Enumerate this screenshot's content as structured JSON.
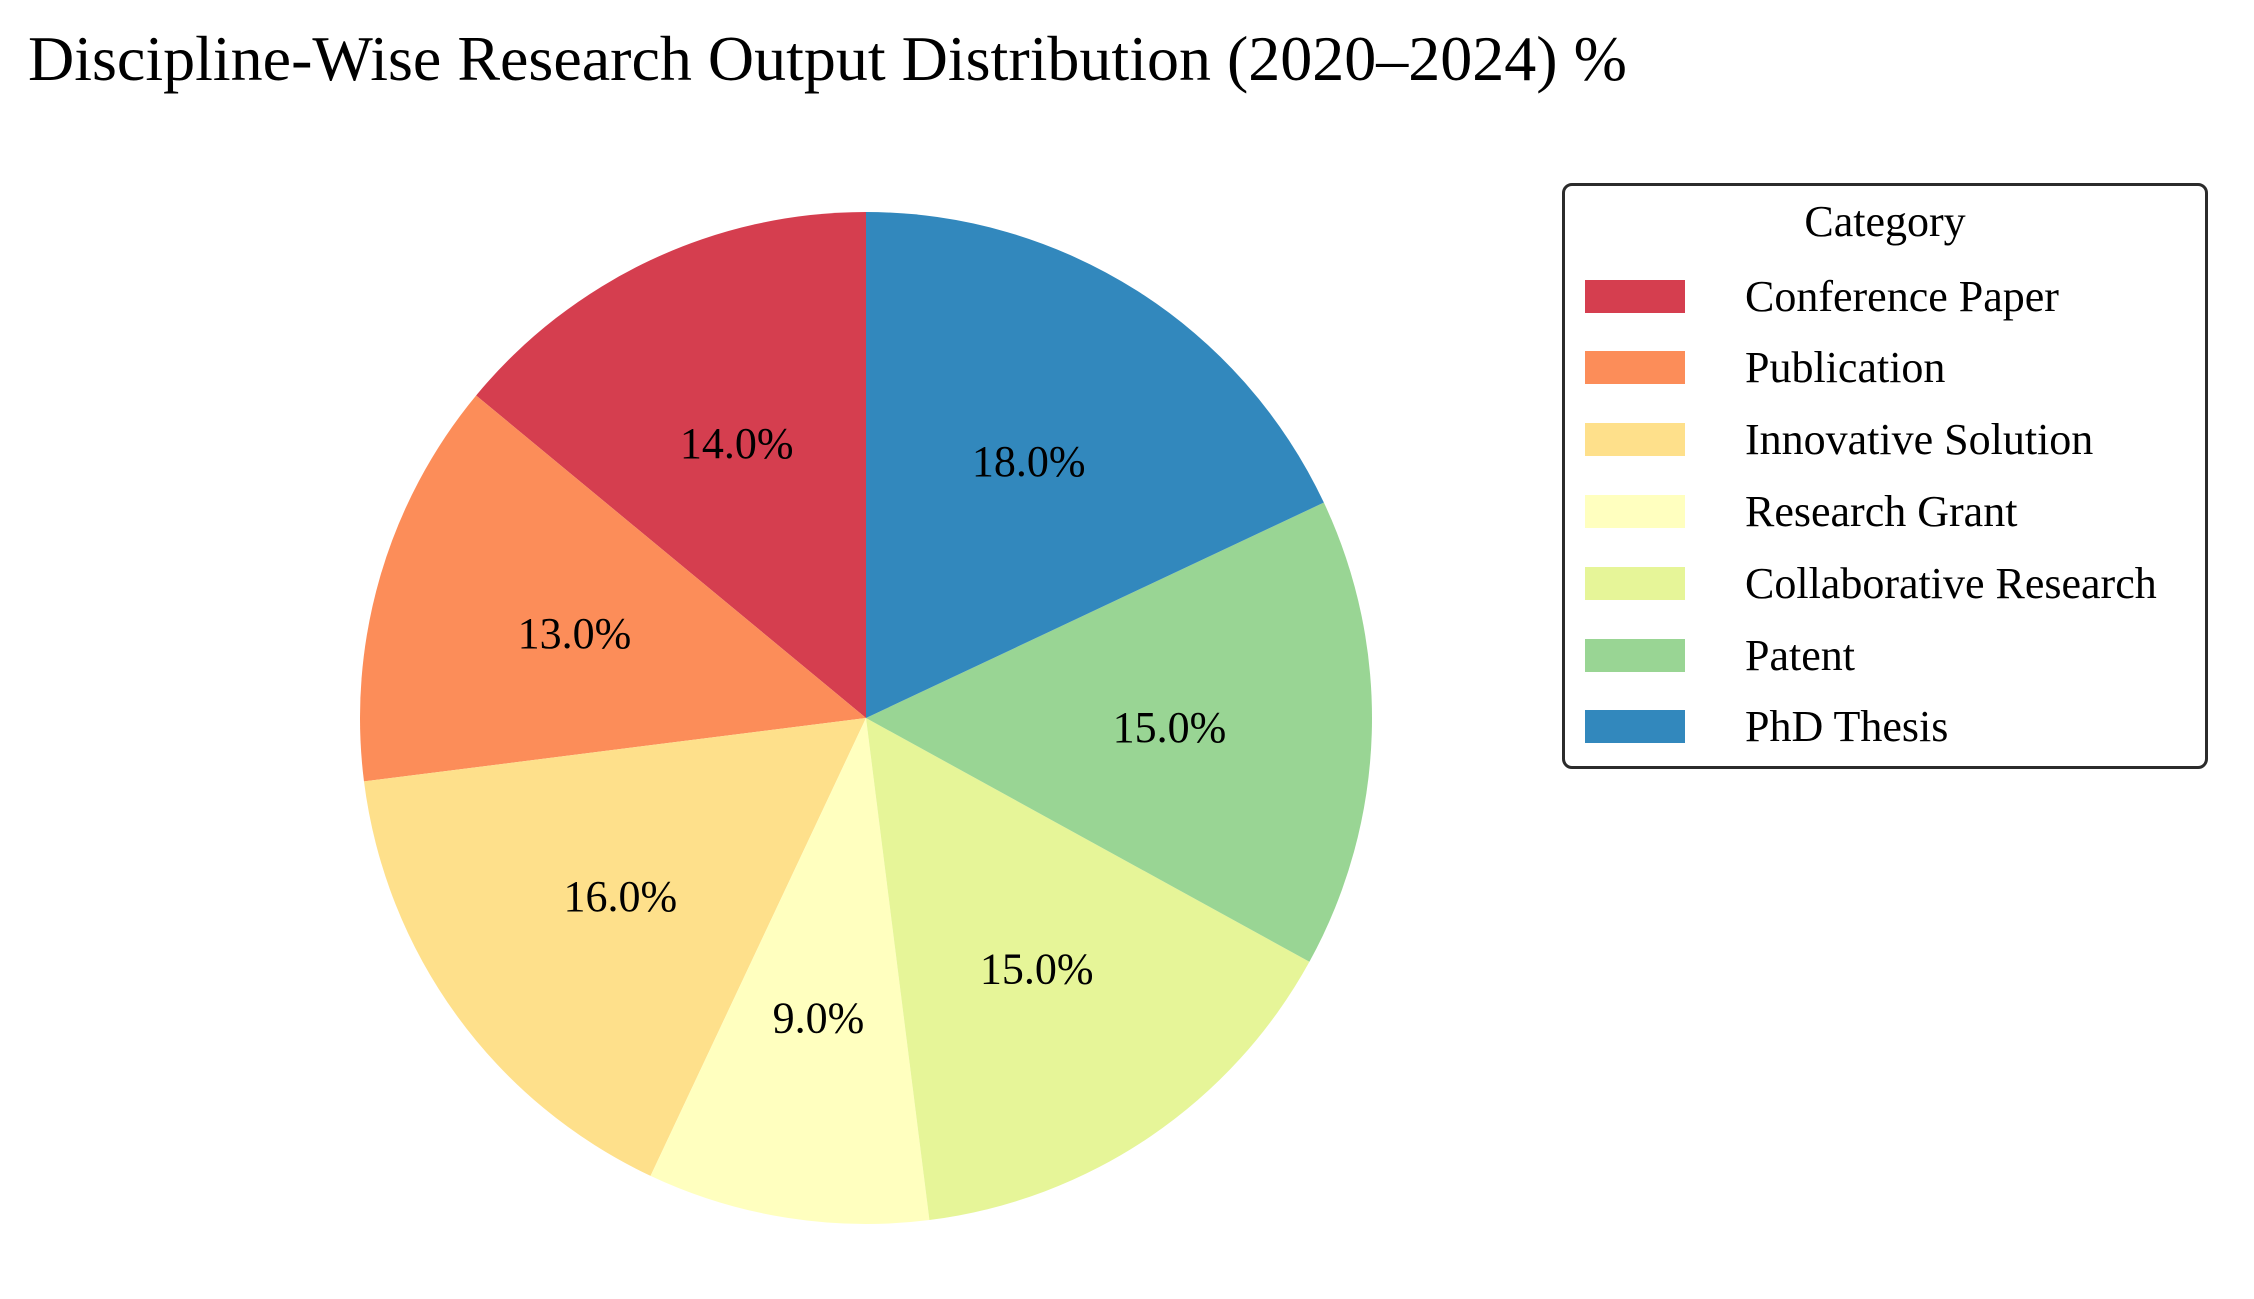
{
  "title": "Discipline-Wise Research Output Distribution (2020–2024) %",
  "chart_data": {
    "type": "pie",
    "title": "Discipline-Wise Research Output Distribution (2020–2024) %",
    "categories": [
      "Conference Paper",
      "Publication",
      "Innovative Solution",
      "Research Grant",
      "Collaborative Research",
      "Patent",
      "PhD Thesis"
    ],
    "values": [
      14.0,
      13.0,
      16.0,
      9.0,
      15.0,
      15.0,
      18.0
    ],
    "labels": [
      "14.0%",
      "13.0%",
      "16.0%",
      "9.0%",
      "15.0%",
      "15.0%",
      "18.0%"
    ],
    "colors": [
      "#d53e4f",
      "#fc8d59",
      "#fee08b",
      "#ffffbf",
      "#e6f598",
      "#99d594",
      "#3288bd"
    ],
    "start_angle_deg": 90,
    "direction": "counterclockwise",
    "legend": {
      "title": "Category",
      "placement": "right"
    }
  }
}
